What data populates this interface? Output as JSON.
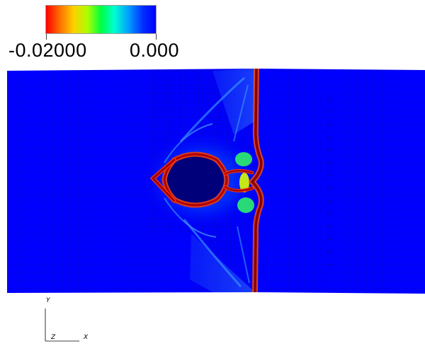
{
  "colorbar": {
    "min_label": "-0.02000",
    "max_label": "0.000",
    "colors": [
      "#ff0000",
      "#ffd000",
      "#00ff40",
      "#00ffd0",
      "#0000ff"
    ]
  },
  "axes_triad": {
    "y_label": "Y",
    "z_label": "Z",
    "x_label": "X"
  },
  "field": {
    "background_color": "#0000ff",
    "crack_color": "#a00000"
  }
}
